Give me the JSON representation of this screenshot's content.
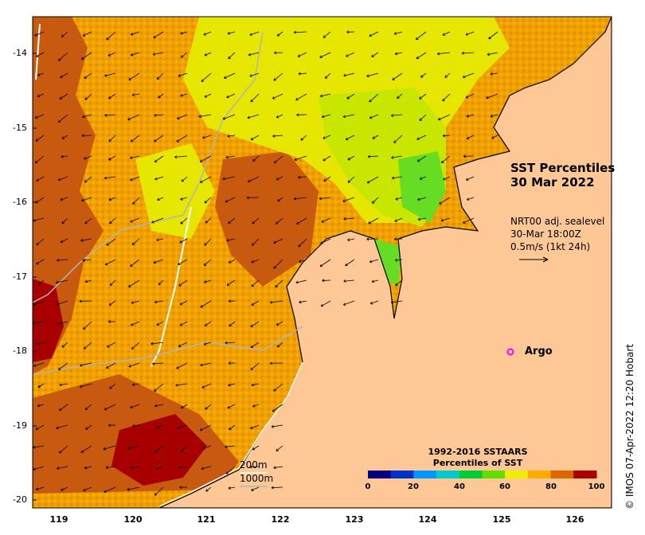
{
  "map": {
    "title_line1": "SST Percentiles",
    "title_line2": "30 Mar 2022",
    "current_info": {
      "line1": "NRT00 adj. sealevel",
      "line2": "30-Mar 18:00Z",
      "line3": "0.5m/s (1kt 24h)"
    },
    "argo_label": "Argo",
    "argo_color": "#ff00ff",
    "land_color": "#fdc896",
    "scale_labels": [
      "200m",
      "1000m"
    ],
    "credit": "© IMOS 07-Apr-2022 12:20 Hobart",
    "y_ticks": [
      "-14",
      "-15",
      "-16",
      "-17",
      "-18",
      "-19",
      "-20"
    ],
    "x_ticks": [
      "119",
      "120",
      "121",
      "122",
      "123",
      "124",
      "125",
      "126"
    ]
  },
  "colorbar": {
    "title_line1": "1992-2016 SSTAARS",
    "title_line2": "Percentiles of SST",
    "ticks": [
      "0",
      "20",
      "40",
      "60",
      "80",
      "100"
    ],
    "colors": [
      "#000080",
      "#0033cc",
      "#0099ff",
      "#00cccc",
      "#00cc33",
      "#66dd00",
      "#eeee00",
      "#ffaa00",
      "#dd6600",
      "#aa0000"
    ]
  }
}
